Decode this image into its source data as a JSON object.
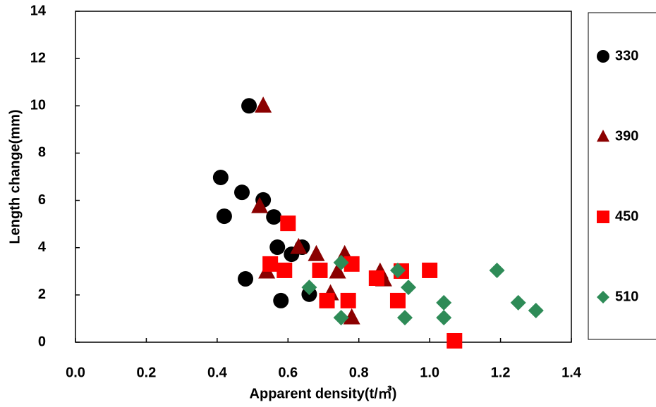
{
  "chart_data": {
    "type": "scatter",
    "xlabel": "Apparent density(t/㎥)",
    "ylabel": "Length change(mm)",
    "xlim": [
      0,
      1.4
    ],
    "xticks": [
      {
        "value": 0,
        "label": "0.0"
      },
      0.2,
      0.4,
      0.6,
      0.8,
      {
        "value": 1,
        "label": "1.0"
      },
      1.2,
      1.4
    ],
    "ylim": [
      0,
      14
    ],
    "yticks": [
      0,
      2,
      4,
      6,
      8,
      10,
      12,
      14
    ],
    "series": [
      {
        "name": "330",
        "color": "#000000",
        "marker": "circle",
        "x": [
          0.49,
          0.41,
          0.42,
          0.47,
          0.53,
          0.56,
          0.57,
          0.61,
          0.64,
          0.48,
          0.58,
          0.66
        ],
        "values": [
          10.0,
          6.97,
          5.33,
          6.34,
          6.02,
          5.3,
          4.02,
          3.72,
          4.02,
          2.68,
          1.76,
          2.03
        ]
      },
      {
        "name": "390",
        "color": "#8b0000",
        "marker": "triangle",
        "x": [
          0.53,
          0.52,
          0.54,
          0.63,
          0.68,
          0.74,
          0.76,
          0.72,
          0.78,
          0.86,
          0.87
        ],
        "values": [
          10.0,
          5.75,
          2.98,
          4.02,
          3.72,
          2.98,
          3.72,
          2.06,
          1.04,
          2.98,
          2.65
        ]
      },
      {
        "name": "450",
        "color": "#ff0000",
        "marker": "square",
        "x": [
          0.6,
          0.55,
          0.59,
          0.69,
          0.71,
          0.77,
          0.78,
          0.85,
          0.92,
          0.91,
          1.0,
          1.07
        ],
        "values": [
          5.03,
          3.31,
          3.04,
          3.04,
          1.76,
          1.76,
          3.31,
          2.71,
          3.01,
          1.76,
          3.04,
          0.06
        ]
      },
      {
        "name": "510",
        "color": "#2e8b57",
        "marker": "diamond",
        "x": [
          0.66,
          0.75,
          0.75,
          0.91,
          0.94,
          0.93,
          1.04,
          1.04,
          1.19,
          1.25,
          1.3
        ],
        "values": [
          2.32,
          3.37,
          1.04,
          3.04,
          2.32,
          1.04,
          1.67,
          1.04,
          3.04,
          1.67,
          1.34
        ]
      }
    ]
  }
}
